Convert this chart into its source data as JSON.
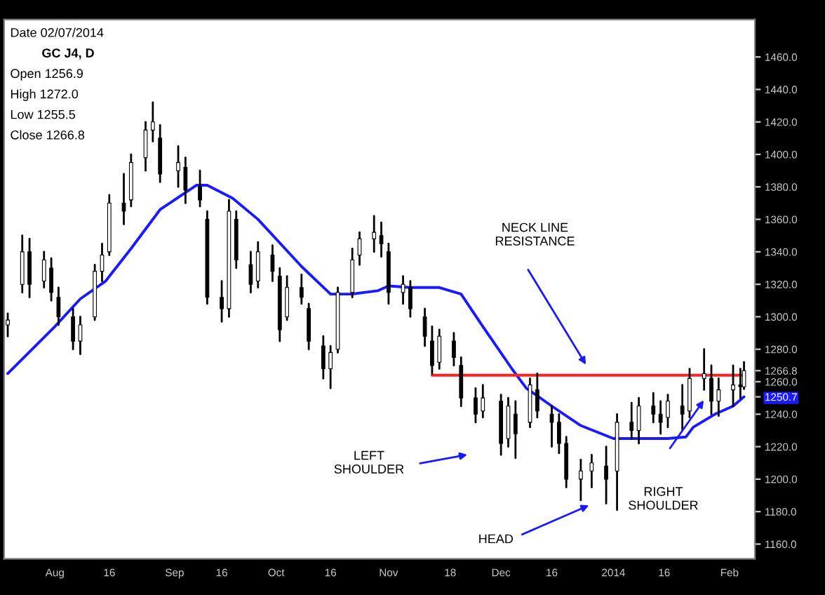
{
  "chart_data": {
    "type": "candlestick",
    "x": [
      "2013-07-19",
      "2013-07-23",
      "2013-07-25",
      "2013-07-29",
      "2013-07-31",
      "2013-08-02",
      "2013-08-06",
      "2013-08-08",
      "2013-08-12",
      "2013-08-14",
      "2013-08-16",
      "2013-08-20",
      "2013-08-22",
      "2013-08-26",
      "2013-08-28",
      "2013-08-30",
      "2013-09-04",
      "2013-09-06",
      "2013-09-10",
      "2013-09-12",
      "2013-09-16",
      "2013-09-18",
      "2013-09-20",
      "2013-09-24",
      "2013-09-26",
      "2013-09-30",
      "2013-10-02",
      "2013-10-04",
      "2013-10-08",
      "2013-10-10",
      "2013-10-14",
      "2013-10-16",
      "2013-10-18",
      "2013-10-22",
      "2013-10-24",
      "2013-10-28",
      "2013-10-30",
      "2013-11-01",
      "2013-11-05",
      "2013-11-07",
      "2013-11-11",
      "2013-11-13",
      "2013-11-15",
      "2013-11-19",
      "2013-11-21",
      "2013-11-25",
      "2013-11-27",
      "2013-12-02",
      "2013-12-04",
      "2013-12-06",
      "2013-12-10",
      "2013-12-12",
      "2013-12-16",
      "2013-12-18",
      "2013-12-20",
      "2013-12-24",
      "2013-12-27",
      "2013-12-31",
      "2014-01-03",
      "2014-01-07",
      "2014-01-09",
      "2014-01-13",
      "2014-01-15",
      "2014-01-17",
      "2014-01-21",
      "2014-01-23",
      "2014-01-27",
      "2014-01-29",
      "2014-01-31",
      "2014-02-04",
      "2014-02-06",
      "2014-02-07"
    ],
    "ohlc": [
      [
        1295,
        1302,
        1288,
        1298
      ],
      [
        1320,
        1350,
        1315,
        1340
      ],
      [
        1340,
        1348,
        1312,
        1320
      ],
      [
        1322,
        1340,
        1318,
        1335
      ],
      [
        1330,
        1336,
        1310,
        1315
      ],
      [
        1312,
        1318,
        1295,
        1300
      ],
      [
        1300,
        1305,
        1280,
        1285
      ],
      [
        1285,
        1300,
        1277,
        1295
      ],
      [
        1300,
        1332,
        1298,
        1328
      ],
      [
        1328,
        1345,
        1322,
        1338
      ],
      [
        1340,
        1375,
        1338,
        1370
      ],
      [
        1370,
        1388,
        1357,
        1365
      ],
      [
        1372,
        1400,
        1368,
        1395
      ],
      [
        1398,
        1420,
        1390,
        1415
      ],
      [
        1415,
        1432,
        1408,
        1420
      ],
      [
        1410,
        1418,
        1383,
        1388
      ],
      [
        1390,
        1405,
        1380,
        1395
      ],
      [
        1392,
        1398,
        1370,
        1378
      ],
      [
        1380,
        1390,
        1368,
        1372
      ],
      [
        1360,
        1365,
        1308,
        1312
      ],
      [
        1312,
        1322,
        1297,
        1305
      ],
      [
        1305,
        1372,
        1300,
        1365
      ],
      [
        1360,
        1365,
        1330,
        1335
      ],
      [
        1332,
        1340,
        1315,
        1320
      ],
      [
        1322,
        1346,
        1318,
        1340
      ],
      [
        1338,
        1344,
        1322,
        1328
      ],
      [
        1325,
        1330,
        1285,
        1292
      ],
      [
        1300,
        1325,
        1298,
        1318
      ],
      [
        1318,
        1326,
        1308,
        1312
      ],
      [
        1305,
        1308,
        1280,
        1285
      ],
      [
        1282,
        1288,
        1262,
        1268
      ],
      [
        1268,
        1282,
        1256,
        1278
      ],
      [
        1280,
        1318,
        1278,
        1315
      ],
      [
        1315,
        1342,
        1312,
        1335
      ],
      [
        1338,
        1352,
        1332,
        1348
      ],
      [
        1348,
        1362,
        1340,
        1352
      ],
      [
        1350,
        1358,
        1337,
        1345
      ],
      [
        1340,
        1345,
        1308,
        1315
      ],
      [
        1315,
        1325,
        1308,
        1320
      ],
      [
        1318,
        1322,
        1300,
        1305
      ],
      [
        1300,
        1305,
        1282,
        1288
      ],
      [
        1285,
        1294,
        1265,
        1270
      ],
      [
        1272,
        1292,
        1268,
        1288
      ],
      [
        1285,
        1290,
        1270,
        1275
      ],
      [
        1270,
        1275,
        1245,
        1250
      ],
      [
        1250,
        1256,
        1235,
        1240
      ],
      [
        1242,
        1258,
        1238,
        1250
      ],
      [
        1248,
        1252,
        1215,
        1222
      ],
      [
        1225,
        1250,
        1220,
        1245
      ],
      [
        1240,
        1248,
        1213,
        1228
      ],
      [
        1235,
        1262,
        1232,
        1258
      ],
      [
        1255,
        1265,
        1238,
        1242
      ],
      [
        1240,
        1245,
        1220,
        1235
      ],
      [
        1235,
        1240,
        1216,
        1222
      ],
      [
        1222,
        1226,
        1195,
        1200
      ],
      [
        1200,
        1212,
        1187,
        1205
      ],
      [
        1205,
        1215,
        1195,
        1210
      ],
      [
        1208,
        1220,
        1185,
        1200
      ],
      [
        1205,
        1240,
        1181,
        1235
      ],
      [
        1235,
        1247,
        1225,
        1230
      ],
      [
        1230,
        1250,
        1222,
        1245
      ],
      [
        1245,
        1253,
        1235,
        1240
      ],
      [
        1240,
        1248,
        1228,
        1235
      ],
      [
        1238,
        1252,
        1232,
        1248
      ],
      [
        1245,
        1258,
        1230,
        1240
      ],
      [
        1242,
        1268,
        1238,
        1262
      ],
      [
        1262,
        1280,
        1255,
        1265
      ],
      [
        1262,
        1270,
        1240,
        1248
      ],
      [
        1248,
        1262,
        1239,
        1255
      ],
      [
        1255,
        1270,
        1245,
        1258
      ],
      [
        1258,
        1268,
        1250,
        1257
      ],
      [
        1256.9,
        1272.0,
        1255.5,
        1266.8
      ]
    ],
    "series": [
      {
        "type": "line",
        "color": "#1a1aff",
        "x": [
          "2013-07-19",
          "2013-08-01",
          "2013-08-08",
          "2013-08-15",
          "2013-08-22",
          "2013-08-30",
          "2013-09-09",
          "2013-09-12",
          "2013-09-19",
          "2013-09-26",
          "2013-10-08",
          "2013-10-16",
          "2013-10-22",
          "2013-10-29",
          "2013-11-01",
          "2013-11-07",
          "2013-11-15",
          "2013-11-21",
          "2013-11-27",
          "2013-12-05",
          "2013-12-09",
          "2013-12-16",
          "2013-12-24",
          "2014-01-02",
          "2014-01-10",
          "2014-01-17",
          "2014-01-22",
          "2014-01-24",
          "2014-01-30",
          "2014-02-04",
          "2014-02-07"
        ],
        "values": [
          1265,
          1294,
          1311,
          1322,
          1342,
          1366,
          1381,
          1381,
          1373,
          1360,
          1331,
          1314,
          1314,
          1316,
          1319,
          1318,
          1318,
          1314,
          1294,
          1268,
          1256,
          1245,
          1233,
          1225,
          1225,
          1225,
          1226,
          1232,
          1240,
          1245,
          1250.7
        ]
      },
      {
        "type": "line",
        "color": "#ff2020",
        "x": [
          "2013-11-13",
          "2014-02-07"
        ],
        "values": [
          1264,
          1264
        ]
      }
    ],
    "xlim": [
      "2013-07-18",
      "2014-02-10"
    ],
    "xticks": [
      {
        "value": "2013-08-01",
        "label": "Aug"
      },
      {
        "value": "2013-08-16",
        "label": "16"
      },
      {
        "value": "2013-09-03",
        "label": "Sep"
      },
      {
        "value": "2013-09-16",
        "label": "16"
      },
      {
        "value": "2013-10-01",
        "label": "Oct"
      },
      {
        "value": "2013-10-16",
        "label": "16"
      },
      {
        "value": "2013-11-01",
        "label": "Nov"
      },
      {
        "value": "2013-11-18",
        "label": "18"
      },
      {
        "value": "2013-12-02",
        "label": "Dec"
      },
      {
        "value": "2013-12-16",
        "label": "16"
      },
      {
        "value": "2014-01-02",
        "label": "2014"
      },
      {
        "value": "2014-01-16",
        "label": "16"
      },
      {
        "value": "2014-02-03",
        "label": "Feb"
      }
    ],
    "ylim": [
      1151,
      1483
    ],
    "yticks": [
      {
        "value": 1160,
        "label": "1160.0"
      },
      {
        "value": 1180,
        "label": "1180.0"
      },
      {
        "value": 1200,
        "label": "1200.0"
      },
      {
        "value": 1220,
        "label": "1220.0"
      },
      {
        "value": 1240,
        "label": "1240.0"
      },
      {
        "value": 1260,
        "label": "1260.0"
      },
      {
        "value": 1250.7,
        "label": "1250.7"
      },
      {
        "value": 1266.8,
        "label": "1266.8"
      },
      {
        "value": 1280,
        "label": "1280.0"
      },
      {
        "value": 1300,
        "label": "1300.0"
      },
      {
        "value": 1320,
        "label": "1320.0"
      },
      {
        "value": 1340,
        "label": "1340.0"
      },
      {
        "value": 1360,
        "label": "1360.0"
      },
      {
        "value": 1380,
        "label": "1380.0"
      },
      {
        "value": 1400,
        "label": "1400.0"
      },
      {
        "value": 1420,
        "label": "1420.0"
      },
      {
        "value": 1440,
        "label": "1440.0"
      },
      {
        "value": 1460,
        "label": "1460.0"
      }
    ],
    "annotations": [
      "Date 02/07/2014",
      "GC J4, D",
      "Open 1256.9",
      "High 1272.0",
      "Low 1255.5",
      "Close 1266.8",
      "NECK LINE\nRESISTANCE",
      "LEFT\nSHOULDER",
      "HEAD",
      "RIGHT\nSHOULDER"
    ],
    "grid": false
  }
}
